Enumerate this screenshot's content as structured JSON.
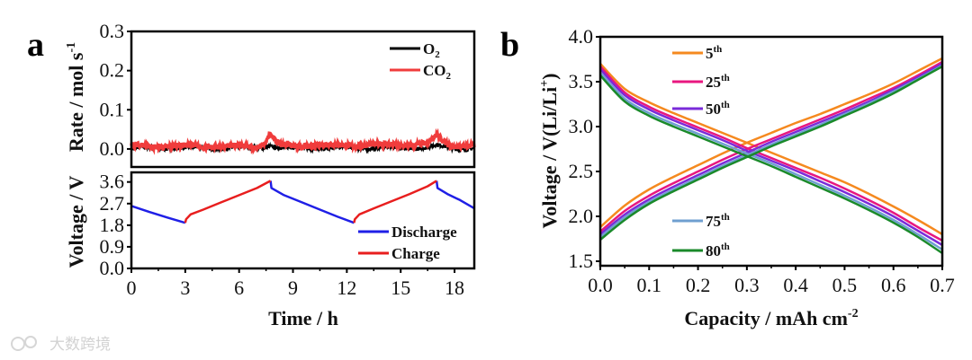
{
  "panel_labels": {
    "a": "a",
    "b": "b"
  },
  "watermark": "大数跨境",
  "chart_data": [
    {
      "panel": "a-top",
      "type": "line",
      "ylabel": "Rate / mol s",
      "ylabel_sup": "-1",
      "xlim": [
        0,
        19.1
      ],
      "ylim": [
        -0.046,
        0.3
      ],
      "yticks": [
        0.0,
        0.1,
        0.2,
        0.3
      ],
      "ytick_labels": [
        "0.0",
        "0.1",
        "0.2",
        "0.3"
      ],
      "legend_position": "top-right",
      "noise_amplitude": 0.008,
      "series": [
        {
          "name": "O",
          "name_sub": "2",
          "color": "#000000",
          "x": [
            0,
            7,
            7.5,
            7.7,
            8,
            8.5,
            16.5,
            17,
            17.3,
            17.8,
            19.1
          ],
          "y": [
            0.002,
            0.003,
            0.006,
            0.01,
            0.005,
            0.002,
            0.003,
            0.008,
            0.006,
            0.002,
            0.002
          ]
        },
        {
          "name": "CO",
          "name_sub": "2",
          "color": "#f03c3c",
          "x": [
            0,
            7,
            7.5,
            7.7,
            8,
            8.5,
            16.5,
            17,
            17.3,
            17.8,
            19.1
          ],
          "y": [
            0.008,
            0.006,
            0.018,
            0.038,
            0.02,
            0.008,
            0.012,
            0.035,
            0.022,
            0.008,
            0.008
          ]
        }
      ]
    },
    {
      "panel": "a-bottom",
      "type": "line",
      "xlabel": "Time / h",
      "ylabel": "Voltage / V",
      "xlim": [
        0,
        19.1
      ],
      "ylim": [
        0,
        4.0
      ],
      "xticks": [
        0,
        3,
        6,
        9,
        12,
        15,
        18
      ],
      "xtick_labels": [
        "0",
        "3",
        "6",
        "9",
        "12",
        "15",
        "18"
      ],
      "yticks": [
        0.0,
        0.9,
        1.8,
        2.7,
        3.6
      ],
      "ytick_labels": [
        "0.0",
        "0.9",
        "1.8",
        "2.7",
        "3.6"
      ],
      "legend_position": "bottom-right",
      "series": [
        {
          "name": "Discharge",
          "color": "#1f1fe6",
          "segments": [
            [
              [
                0,
                2.6
              ],
              [
                1,
                2.35
              ],
              [
                2,
                2.12
              ],
              [
                3,
                1.9
              ]
            ],
            [
              [
                7.75,
                3.65
              ],
              [
                7.8,
                3.35
              ],
              [
                8.5,
                3.05
              ],
              [
                9.5,
                2.75
              ],
              [
                10.5,
                2.45
              ],
              [
                11.5,
                2.15
              ],
              [
                12.4,
                1.9
              ]
            ],
            [
              [
                17,
                3.65
              ],
              [
                17.05,
                3.35
              ],
              [
                17.6,
                3.1
              ],
              [
                18.3,
                2.85
              ],
              [
                19.1,
                2.5
              ]
            ]
          ]
        },
        {
          "name": "Charge",
          "color": "#e81e1e",
          "segments": [
            [
              [
                3,
                1.9
              ],
              [
                3.05,
                2.05
              ],
              [
                3.3,
                2.25
              ],
              [
                4,
                2.45
              ],
              [
                5,
                2.75
              ],
              [
                6,
                3.05
              ],
              [
                7,
                3.35
              ],
              [
                7.75,
                3.65
              ]
            ],
            [
              [
                12.4,
                1.9
              ],
              [
                12.45,
                2.05
              ],
              [
                12.7,
                2.25
              ],
              [
                13.5,
                2.5
              ],
              [
                14.5,
                2.8
              ],
              [
                15.5,
                3.1
              ],
              [
                16.5,
                3.42
              ],
              [
                17,
                3.65
              ]
            ]
          ]
        }
      ]
    },
    {
      "panel": "b",
      "type": "line",
      "xlabel": "Capacity / mAh cm",
      "xlabel_sup": "-2",
      "ylabel": "Voltage / V(Li/Li",
      "ylabel_sup": "+",
      "ylabel_end": ")",
      "xlim": [
        0,
        0.7
      ],
      "ylim": [
        1.45,
        4.0
      ],
      "xticks": [
        0,
        0.1,
        0.2,
        0.3,
        0.4,
        0.5,
        0.6,
        0.7
      ],
      "xtick_labels": [
        "0.0",
        "0.1",
        "0.2",
        "0.3",
        "0.4",
        "0.5",
        "0.6",
        "0.7"
      ],
      "yticks": [
        1.5,
        2.0,
        2.5,
        3.0,
        3.5,
        4.0
      ],
      "ytick_labels": [
        "1.5",
        "2.0",
        "2.5",
        "3.0",
        "3.5",
        "4.0"
      ],
      "legend_position": "top-left / bottom-left",
      "x": [
        0,
        0.05,
        0.1,
        0.15,
        0.2,
        0.25,
        0.3,
        0.35,
        0.4,
        0.45,
        0.5,
        0.55,
        0.6,
        0.65,
        0.7
      ],
      "series": [
        {
          "name": "5",
          "name_sup": "th",
          "color": "#f5891f",
          "discharge": [
            3.7,
            3.42,
            3.27,
            3.15,
            3.04,
            2.93,
            2.82,
            2.71,
            2.6,
            2.49,
            2.38,
            2.25,
            2.11,
            1.96,
            1.8
          ],
          "charge": [
            1.88,
            2.12,
            2.3,
            2.44,
            2.57,
            2.7,
            2.82,
            2.93,
            3.04,
            3.14,
            3.25,
            3.36,
            3.48,
            3.62,
            3.76
          ]
        },
        {
          "name": "25",
          "name_sup": "th",
          "color": "#e8177f",
          "discharge": [
            3.67,
            3.38,
            3.22,
            3.1,
            2.99,
            2.88,
            2.76,
            2.65,
            2.54,
            2.43,
            2.31,
            2.18,
            2.04,
            1.88,
            1.73
          ],
          "charge": [
            1.83,
            2.06,
            2.23,
            2.37,
            2.5,
            2.63,
            2.75,
            2.86,
            2.97,
            3.08,
            3.19,
            3.31,
            3.43,
            3.57,
            3.72
          ]
        },
        {
          "name": "50",
          "name_sup": "th",
          "color": "#7a2bd9",
          "discharge": [
            3.64,
            3.35,
            3.19,
            3.07,
            2.96,
            2.85,
            2.73,
            2.62,
            2.51,
            2.39,
            2.27,
            2.14,
            2.0,
            1.84,
            1.68
          ],
          "charge": [
            1.8,
            2.02,
            2.19,
            2.33,
            2.46,
            2.59,
            2.71,
            2.83,
            2.94,
            3.05,
            3.16,
            3.28,
            3.41,
            3.55,
            3.7
          ]
        },
        {
          "name": "75",
          "name_sup": "th",
          "color": "#6f9fd0",
          "discharge": [
            3.6,
            3.31,
            3.15,
            3.03,
            2.92,
            2.81,
            2.7,
            2.59,
            2.47,
            2.35,
            2.23,
            2.1,
            1.96,
            1.8,
            1.63
          ],
          "charge": [
            1.77,
            1.99,
            2.16,
            2.3,
            2.43,
            2.56,
            2.68,
            2.8,
            2.91,
            3.02,
            3.14,
            3.26,
            3.39,
            3.53,
            3.68
          ]
        },
        {
          "name": "80",
          "name_sup": "th",
          "color": "#1a8a2a",
          "discharge": [
            3.57,
            3.28,
            3.12,
            3.0,
            2.89,
            2.78,
            2.67,
            2.56,
            2.44,
            2.32,
            2.2,
            2.07,
            1.93,
            1.77,
            1.59
          ],
          "charge": [
            1.74,
            1.96,
            2.14,
            2.28,
            2.41,
            2.54,
            2.66,
            2.78,
            2.89,
            3.0,
            3.12,
            3.24,
            3.37,
            3.52,
            3.67
          ]
        }
      ]
    }
  ]
}
